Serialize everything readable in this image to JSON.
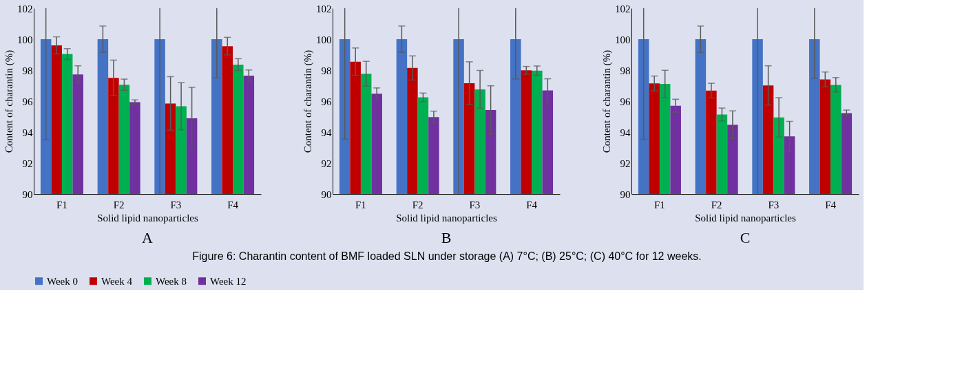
{
  "chart_data": [
    {
      "type": "bar",
      "title": "A",
      "xlabel": "Solid lipid nanoparticles",
      "ylabel": "Content of charantin (%)",
      "categories": [
        "F1",
        "F2",
        "F3",
        "F4"
      ],
      "ylim": [
        90,
        102
      ],
      "yticks": [
        90,
        92,
        94,
        96,
        98,
        100,
        102
      ],
      "grid": false,
      "legend": "bottom",
      "series": [
        {
          "name": "Week 0",
          "color": "#4472c4",
          "values": [
            100,
            100,
            100,
            100
          ],
          "errors": [
            [
              93.5,
              102
            ],
            0.85,
            [
              90,
              102
            ],
            [
              97.5,
              102
            ]
          ]
        },
        {
          "name": "Week 4",
          "color": "#c00000",
          "values": [
            99.6,
            97.5,
            95.85,
            99.55
          ],
          "errors": [
            0.55,
            1.15,
            1.73,
            0.57
          ]
        },
        {
          "name": "Week 8",
          "color": "#00b050",
          "values": [
            99.04,
            97.06,
            95.67,
            98.36
          ],
          "errors": [
            0.35,
            0.36,
            1.52,
            0.38
          ]
        },
        {
          "name": "Week 12",
          "color": "#7030a0",
          "values": [
            97.72,
            95.93,
            94.89,
            97.65
          ],
          "errors": [
            0.56,
            0.15,
            2.0,
            0.36
          ]
        }
      ],
      "annotations": [
        "Figure 6: Charantin content of BMF loaded SLN under storage (A) 7°C; (B) 25°C; (C) 40°C for 12 weeks."
      ]
    },
    {
      "type": "bar",
      "title": "B",
      "xlabel": "Solid lipid nanoparticles",
      "ylabel": "Content of charantin (%)",
      "categories": [
        "F1",
        "F2",
        "F3",
        "F4"
      ],
      "ylim": [
        90,
        102
      ],
      "yticks": [
        90,
        92,
        94,
        96,
        98,
        100,
        102
      ],
      "grid": false,
      "legend": "bottom",
      "series": [
        {
          "name": "Week 0",
          "color": "#4472c4",
          "values": [
            100,
            100,
            100,
            100
          ],
          "errors": [
            [
              93.54,
              102
            ],
            0.85,
            [
              90,
              102
            ],
            [
              97.43,
              102
            ]
          ]
        },
        {
          "name": "Week 4",
          "color": "#c00000",
          "values": [
            98.55,
            98.14,
            97.16,
            97.99
          ],
          "errors": [
            0.88,
            0.78,
            1.38,
            0.25
          ]
        },
        {
          "name": "Week 8",
          "color": "#00b050",
          "values": [
            97.77,
            96.24,
            96.76,
            97.97
          ],
          "errors": [
            0.8,
            0.28,
            1.22,
            0.3
          ]
        },
        {
          "name": "Week 12",
          "color": "#7030a0",
          "values": [
            96.48,
            94.97,
            95.42,
            96.69
          ],
          "errors": [
            0.37,
            0.38,
            1.57,
            0.75
          ]
        }
      ]
    },
    {
      "type": "bar",
      "title": "C",
      "xlabel": "Solid lipid nanoparticles",
      "ylabel": "Content of charantin (%)",
      "categories": [
        "F1",
        "F2",
        "F3",
        "F4"
      ],
      "ylim": [
        90,
        102
      ],
      "yticks": [
        90,
        92,
        94,
        96,
        98,
        100,
        102
      ],
      "grid": false,
      "legend": "bottom",
      "series": [
        {
          "name": "Week 0",
          "color": "#4472c4",
          "values": [
            100,
            100,
            100,
            100
          ],
          "errors": [
            [
              93.53,
              102
            ],
            0.85,
            [
              90,
              102
            ],
            [
              97.47,
              102
            ]
          ]
        },
        {
          "name": "Week 4",
          "color": "#c00000",
          "values": [
            97.14,
            96.68,
            97.01,
            97.4
          ],
          "errors": [
            0.48,
            0.47,
            1.27,
            0.48
          ]
        },
        {
          "name": "Week 8",
          "color": "#00b050",
          "values": [
            97.11,
            95.13,
            94.95,
            97.05
          ],
          "errors": [
            0.88,
            0.42,
            1.27,
            0.47
          ]
        },
        {
          "name": "Week 12",
          "color": "#7030a0",
          "values": [
            95.7,
            94.47,
            93.72,
            95.22
          ],
          "errors": [
            0.42,
            0.9,
            0.97,
            0.2
          ]
        }
      ]
    }
  ]
}
